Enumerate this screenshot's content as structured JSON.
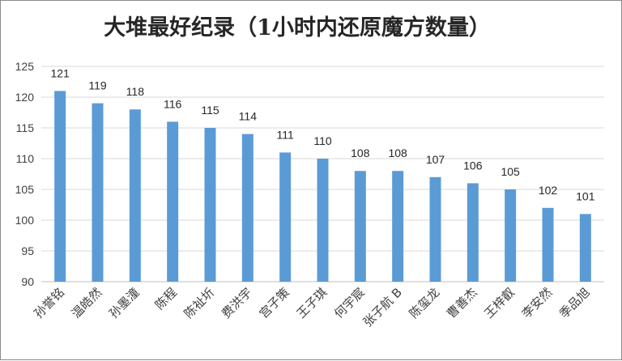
{
  "chart_data": {
    "type": "bar",
    "title": "大堆最好纪录（1小时内还原魔方数量）",
    "xlabel": "",
    "ylabel": "",
    "ylim": [
      90,
      125
    ],
    "yticks": [
      90,
      95,
      100,
      105,
      110,
      115,
      120,
      125
    ],
    "grid": true,
    "legend": "none",
    "bar_color": "#5b9bd5",
    "categories": [
      "孙誉铭",
      "温皓然",
      "孙墨潼",
      "陈程",
      "陈祉圻",
      "费洪宇",
      "宫子策",
      "王子琪",
      "何宇宸",
      "张子航 B",
      "陈玺龙",
      "曹善杰",
      "王梓叡",
      "李安然",
      "季品旭"
    ],
    "values": [
      121,
      119,
      118,
      116,
      115,
      114,
      111,
      110,
      108,
      108,
      107,
      106,
      105,
      102,
      101
    ]
  }
}
